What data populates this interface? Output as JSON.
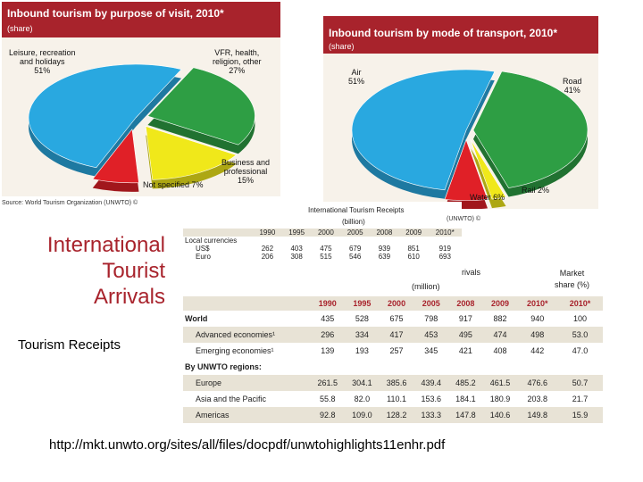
{
  "chart_data": [
    {
      "type": "pie",
      "title": "Inbound tourism by purpose of visit, 2010*",
      "subtitle": "(share)",
      "slices": [
        {
          "label": "Leisure, recreation and holidays",
          "value": 51,
          "display": "51%",
          "color": "#29a8e0"
        },
        {
          "label": "VFR, health, religion, other",
          "value": 27,
          "display": "27%",
          "color": "#2e9e44"
        },
        {
          "label": "Business and professional",
          "value": 15,
          "display": "15%",
          "color": "#f0e81a"
        },
        {
          "label": "Not specified",
          "value": 7,
          "display": "7%",
          "color": "#e02027"
        }
      ]
    },
    {
      "type": "pie",
      "title": "Inbound tourism by mode of transport, 2010*",
      "subtitle": "(share)",
      "slices": [
        {
          "label": "Air",
          "value": 51,
          "display": "51%",
          "color": "#29a8e0"
        },
        {
          "label": "Road",
          "value": 41,
          "display": "41%",
          "color": "#2e9e44"
        },
        {
          "label": "Rail",
          "value": 2,
          "display": "2%",
          "color": "#f0e81a"
        },
        {
          "label": "Water",
          "value": 6,
          "display": "6%",
          "color": "#e02027"
        }
      ]
    },
    {
      "type": "table",
      "title": "International Tourism Receipts",
      "unit": "(billion)",
      "columns": [
        "1990",
        "1995",
        "2000",
        "2005",
        "2008",
        "2009",
        "2010*"
      ],
      "section": "Local currencies",
      "rows": [
        {
          "label": "US$",
          "values": [
            "262",
            "403",
            "475",
            "679",
            "939",
            "851",
            "919"
          ]
        },
        {
          "label": "Euro",
          "values": [
            "206",
            "308",
            "515",
            "546",
            "639",
            "610",
            "693"
          ]
        }
      ]
    },
    {
      "type": "table",
      "title": "International Tourist Arrivals",
      "unit": "(million)",
      "columns": [
        "1990",
        "1995",
        "2000",
        "2005",
        "2008",
        "2009",
        "2010*"
      ],
      "share_header": [
        "Market",
        "share (%)",
        "2010*"
      ],
      "rows": [
        {
          "label": "World",
          "values": [
            "435",
            "528",
            "675",
            "798",
            "917",
            "882",
            "940"
          ],
          "share": "100"
        },
        {
          "label": "Advanced economies¹",
          "values": [
            "296",
            "334",
            "417",
            "453",
            "495",
            "474",
            "498"
          ],
          "share": "53.0"
        },
        {
          "label": "Emerging economies¹",
          "values": [
            "139",
            "193",
            "257",
            "345",
            "421",
            "408",
            "442"
          ],
          "share": "47.0"
        },
        {
          "label": "By UNWTO regions:",
          "values": [],
          "share": ""
        },
        {
          "label": "Europe",
          "values": [
            "261.5",
            "304.1",
            "385.6",
            "439.4",
            "485.2",
            "461.5",
            "476.6"
          ],
          "share": "50.7"
        },
        {
          "label": "Asia and the Pacific",
          "values": [
            "55.8",
            "82.0",
            "110.1",
            "153.6",
            "184.1",
            "180.9",
            "203.8"
          ],
          "share": "21.7"
        },
        {
          "label": "Americas",
          "values": [
            "92.8",
            "109.0",
            "128.2",
            "133.3",
            "147.8",
            "140.6",
            "149.8"
          ],
          "share": "15.9"
        }
      ]
    }
  ],
  "pie1_labels": {
    "leisure": [
      "Leisure, recreation",
      "and holidays",
      "51%"
    ],
    "vfr": [
      "VFR, health,",
      "religion, other",
      "27%"
    ],
    "business": [
      "Business and",
      "professional",
      "15%"
    ],
    "notspec": "Not specified  7%"
  },
  "pie2_labels": {
    "air": [
      "Air",
      "51%"
    ],
    "road": [
      "Road",
      "41%"
    ],
    "water": "Water 6%",
    "rail": "Rail 2%"
  },
  "source_text": "Source: World Tourism Organization (UNWTO) ©",
  "receipts_marker": "(UNWTO) ©",
  "arrivals_fragment": "rivals",
  "slide_title": [
    "International",
    "Tourist",
    "Arrivals"
  ],
  "side_label": "Tourism Receipts",
  "url": "http://mkt.unwto.org/sites/all/files/docpdf/unwtohighlights11enhr.pdf"
}
